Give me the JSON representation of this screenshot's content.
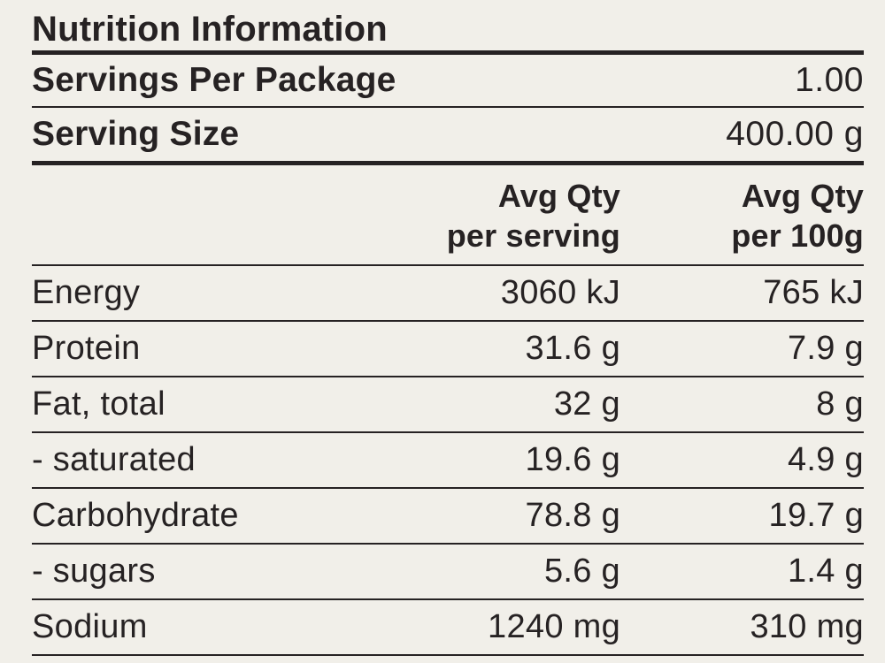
{
  "colors": {
    "background": "#f1efe9",
    "ink": "#262223"
  },
  "title": "Nutrition Information",
  "package_info": {
    "servings_per_package": {
      "label": "Servings Per Package",
      "value": "1.00"
    },
    "serving_size": {
      "label": "Serving Size",
      "value": "400.00 g"
    }
  },
  "column_headers": {
    "per_serving": "Avg Qty\nper serving",
    "per_100g": "Avg Qty\nper 100g"
  },
  "rows": [
    {
      "label": "Energy",
      "per_serving": "3060 kJ",
      "per_100g": "765 kJ"
    },
    {
      "label": "Protein",
      "per_serving": "31.6 g",
      "per_100g": "7.9 g"
    },
    {
      "label": "Fat, total",
      "per_serving": "32 g",
      "per_100g": "8 g"
    },
    {
      "label": "- saturated",
      "per_serving": "19.6 g",
      "per_100g": "4.9 g"
    },
    {
      "label": "Carbohydrate",
      "per_serving": "78.8 g",
      "per_100g": "19.7 g"
    },
    {
      "label": "- sugars",
      "per_serving": "5.6 g",
      "per_100g": "1.4 g"
    },
    {
      "label": "Sodium",
      "per_serving": "1240 mg",
      "per_100g": "310 mg"
    }
  ]
}
